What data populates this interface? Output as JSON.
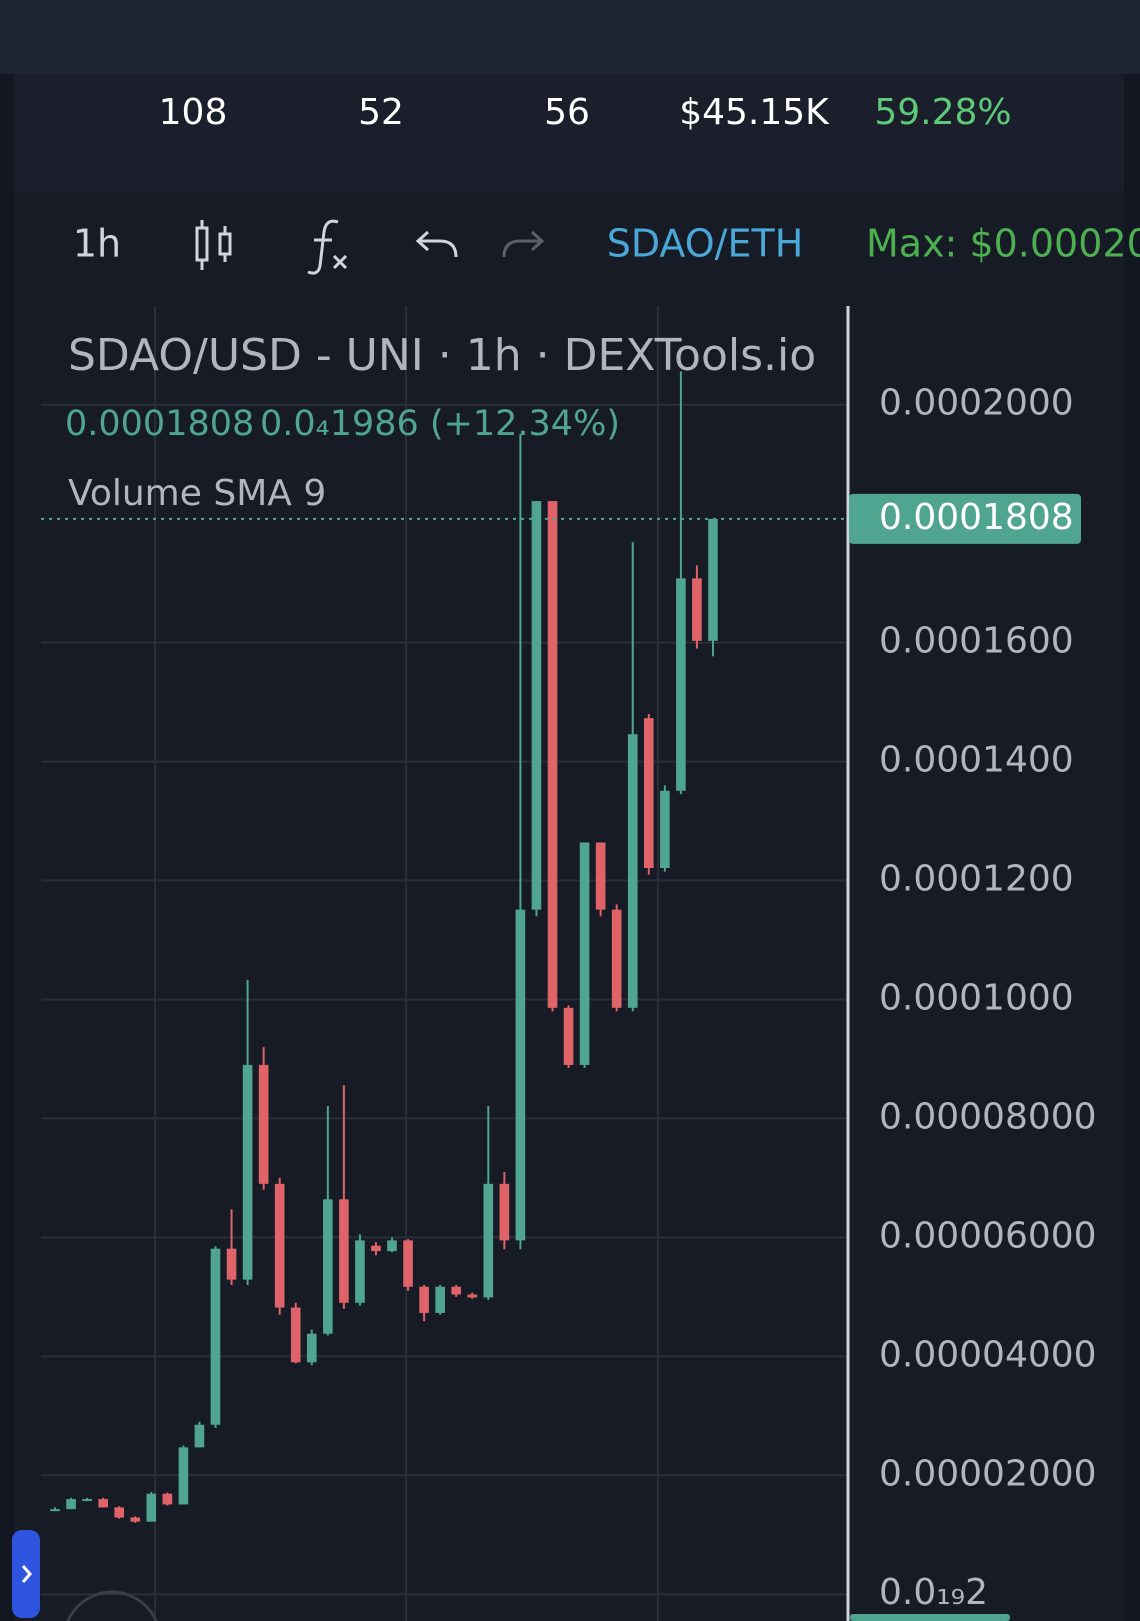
{
  "header": {
    "stats": [
      108,
      52,
      56,
      "$45.15K",
      "59.28%"
    ]
  },
  "toolbar": {
    "interval": "1h",
    "pair": "SDAO/ETH",
    "max": "Max: $0.00020"
  },
  "chart_data": {
    "type": "candlestick",
    "title": "SDAO/USD - UNI · 1h · DEXTools.io",
    "current_price": 0.0001808,
    "change": "0.0₄1986 (+12.34%)",
    "indicator": "Volume SMA 9",
    "up_color": "#4fa58f",
    "down_color": "#e0636a",
    "grid": true,
    "ylim": [
      -4.5e-06,
      0.0002166
    ],
    "yticks": [
      {
        "value": 0.0002,
        "label": "0.0002000"
      },
      {
        "value": 0.00016,
        "label": "0.0001600"
      },
      {
        "value": 0.00014,
        "label": "0.0001400"
      },
      {
        "value": 0.00012,
        "label": "0.0001200"
      },
      {
        "value": 0.0001,
        "label": "0.0001000"
      },
      {
        "value": 8e-05,
        "label": "0.00008000"
      },
      {
        "value": 6e-05,
        "label": "0.00006000"
      },
      {
        "value": 4e-05,
        "label": "0.00004000"
      },
      {
        "value": 2e-05,
        "label": "0.00002000"
      },
      {
        "value": 2e-20,
        "label": "0.0₁₉2"
      }
    ],
    "open": [
      1.43e-05,
      1.43e-05,
      1.6e-05,
      1.6e-05,
      1.46e-05,
      1.29e-05,
      1.22e-05,
      1.69e-05,
      1.51e-05,
      2.47e-05,
      2.85e-05,
      5.81e-05,
      5.29e-05,
      8.9e-05,
      6.9e-05,
      4.82e-05,
      3.9e-05,
      4.38e-05,
      6.64e-05,
      4.9e-05,
      5.86e-05,
      5.77e-05,
      5.95e-05,
      5.17e-05,
      4.73e-05,
      5.17e-05,
      5.04e-05,
      4.99e-05,
      6.9e-05,
      5.95e-05,
      0.0001151,
      0.0001838,
      9.86e-05,
      8.9e-05,
      0.0001264,
      0.0001151,
      9.86e-05,
      0.0001473,
      0.0001221,
      0.0001351,
      0.0001708,
      0.0001603
    ],
    "high": [
      1.46e-05,
      1.62e-05,
      1.62e-05,
      1.62e-05,
      1.48e-05,
      1.31e-05,
      1.72e-05,
      1.71e-05,
      2.5e-05,
      2.9e-05,
      5.85e-05,
      6.47e-05,
      0.0001033,
      9.2e-05,
      7e-05,
      4.9e-05,
      4.45e-05,
      8.21e-05,
      8.56e-05,
      6.05e-05,
      5.92e-05,
      6e-05,
      5.97e-05,
      5.2e-05,
      5.2e-05,
      5.2e-05,
      5.07e-05,
      8.21e-05,
      7.1e-05,
      0.0001951,
      0.0001838,
      0.0001838,
      9.9e-05,
      0.0001264,
      0.0001264,
      0.000116,
      0.0001769,
      0.000148,
      0.000136,
      0.0002056,
      0.000173,
      0.0001808
    ],
    "low": [
      1.4e-05,
      1.43e-05,
      1.58e-05,
      1.46e-05,
      1.27e-05,
      1.2e-05,
      1.22e-05,
      1.49e-05,
      1.51e-05,
      2.47e-05,
      2.8e-05,
      5.2e-05,
      5.2e-05,
      6.8e-05,
      4.7e-05,
      3.88e-05,
      3.85e-05,
      4.35e-05,
      4.8e-05,
      4.85e-05,
      5.7e-05,
      5.75e-05,
      5.1e-05,
      4.59e-05,
      4.7e-05,
      5e-05,
      4.97e-05,
      4.95e-05,
      5.8e-05,
      5.8e-05,
      0.000114,
      9.8e-05,
      8.85e-05,
      8.85e-05,
      0.000114,
      9.8e-05,
      9.8e-05,
      0.000121,
      0.0001215,
      0.0001345,
      0.000159,
      0.0001577
    ],
    "close": [
      1.43e-05,
      1.6e-05,
      1.6e-05,
      1.46e-05,
      1.29e-05,
      1.22e-05,
      1.69e-05,
      1.51e-05,
      2.47e-05,
      2.85e-05,
      5.81e-05,
      5.29e-05,
      8.9e-05,
      6.9e-05,
      4.82e-05,
      3.9e-05,
      4.38e-05,
      6.64e-05,
      4.9e-05,
      5.95e-05,
      5.77e-05,
      5.95e-05,
      5.17e-05,
      4.73e-05,
      5.17e-05,
      5.04e-05,
      4.99e-05,
      6.9e-05,
      5.95e-05,
      0.0001151,
      0.0001838,
      9.86e-05,
      8.9e-05,
      0.0001264,
      0.0001151,
      9.86e-05,
      0.0001446,
      0.0001221,
      0.0001351,
      0.0001708,
      0.0001603,
      0.0001808
    ]
  }
}
